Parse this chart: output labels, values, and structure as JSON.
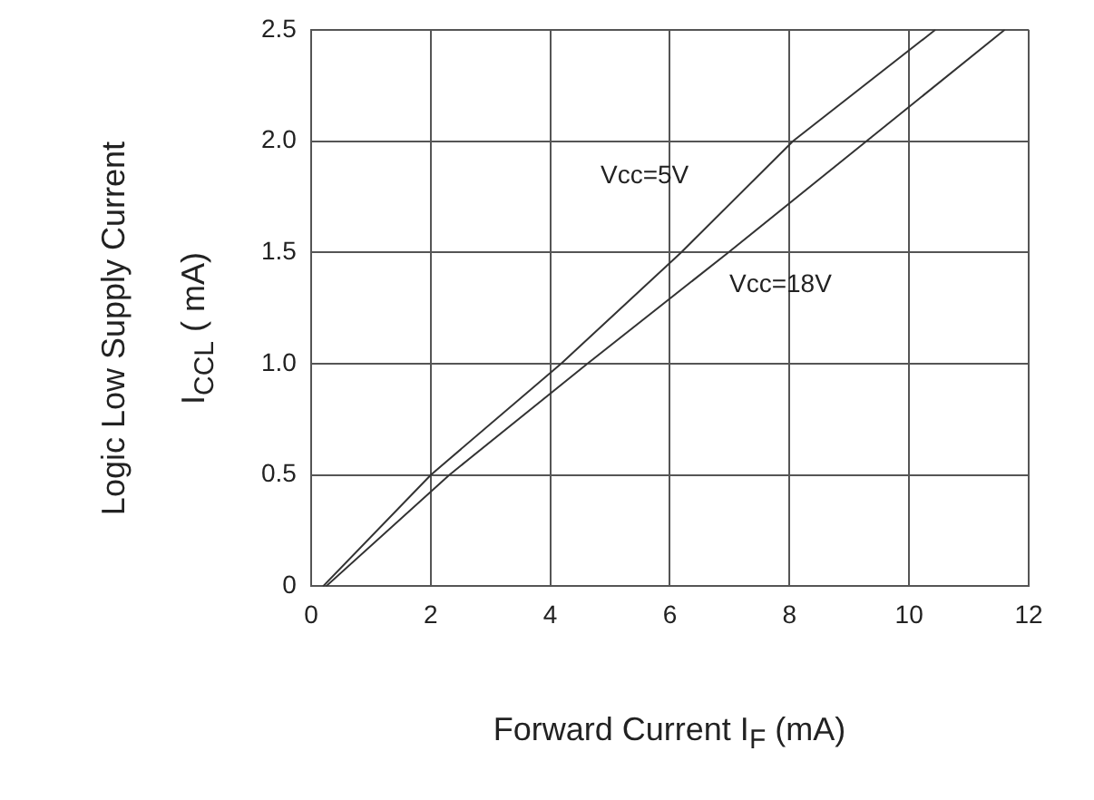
{
  "chart_data": {
    "type": "line",
    "xlabel": "Forward Current I$_{F}$ (mA)",
    "ylabel": "Logic Low Supply Current\nI$_{CCL}$ ( mA)",
    "series": [
      {
        "color": "#333333",
        "x": [
          0.2,
          2.0,
          4.18,
          6.19,
          8.06,
          10.44
        ],
        "values": [
          0,
          0.5,
          1.0,
          1.5,
          2.0,
          2.5
        ]
      },
      {
        "color": "#333333",
        "x": [
          0.25,
          2.31,
          4.62,
          6.98,
          9.29,
          11.6
        ],
        "values": [
          0,
          0.5,
          1.0,
          1.5,
          2.0,
          2.5
        ]
      }
    ],
    "annotations": [
      "Vcc=5V",
      "Vcc=18V"
    ],
    "xlim": [
      0,
      12
    ],
    "xticks": [
      0,
      2,
      4,
      6,
      8,
      10,
      12
    ],
    "ylim": [
      0,
      2.5
    ],
    "yticks": [
      0,
      0.5,
      {
        "value": 1,
        "label": "1.0"
      },
      1.5,
      {
        "value": 2,
        "label": "2.0"
      },
      2.5
    ],
    "grid": true,
    "legend": false,
    "marker": "none",
    "line_style": "solid"
  }
}
